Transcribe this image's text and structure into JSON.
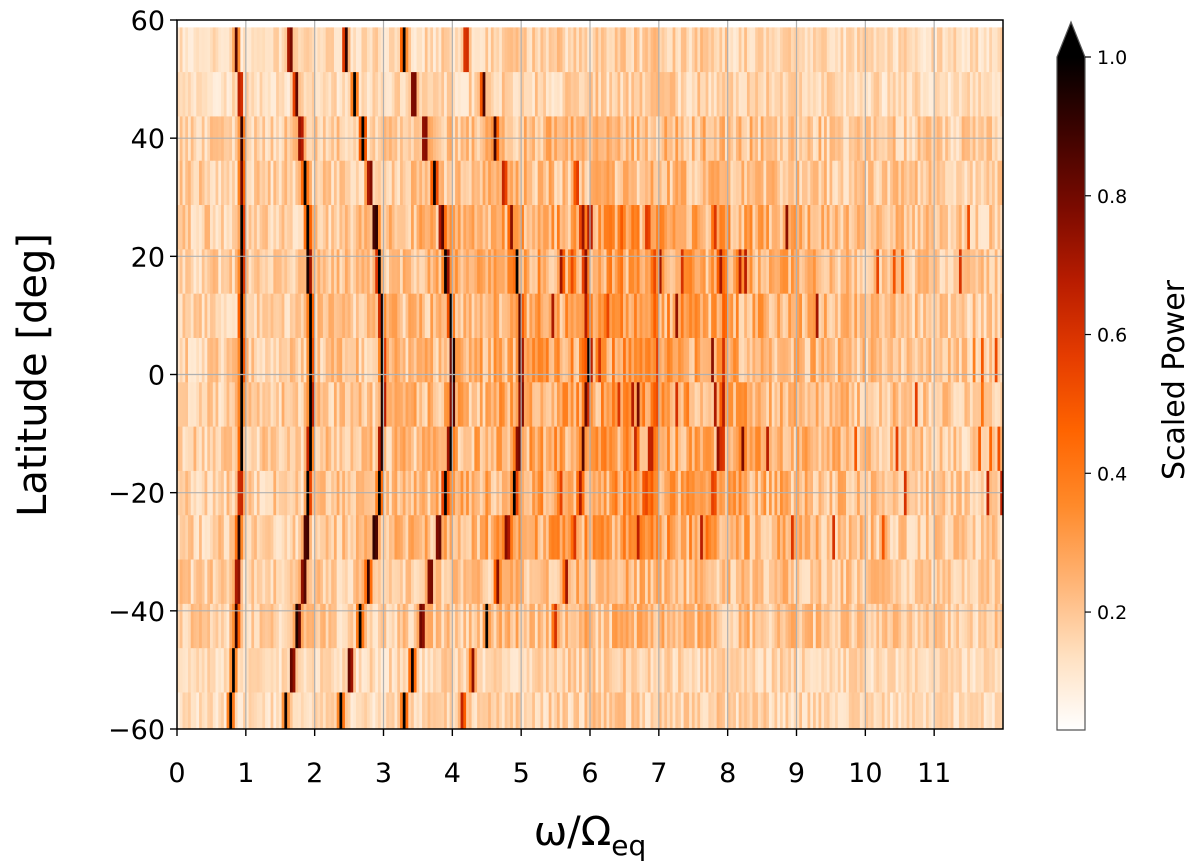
{
  "chart_data": {
    "type": "heatmap",
    "title": "",
    "xlabel": "ω/Ω",
    "xlabel_subscript": "eq",
    "ylabel": "Latitude [deg]",
    "xlim": [
      0,
      12
    ],
    "ylim": [
      -60,
      60
    ],
    "x_ticks": [
      0,
      1,
      2,
      3,
      4,
      5,
      6,
      7,
      8,
      9,
      10,
      11
    ],
    "x_tick_labels": [
      "0",
      "1",
      "2",
      "3",
      "4",
      "5",
      "6",
      "7",
      "8",
      "9",
      "10",
      "11"
    ],
    "y_ticks": [
      -60,
      -40,
      -20,
      0,
      20,
      40,
      60
    ],
    "y_tick_labels": [
      "−60",
      "−40",
      "−20",
      "0",
      "20",
      "40",
      "60"
    ],
    "grid": true,
    "latitude_bands": [
      -57.5,
      -50,
      -42.5,
      -35,
      -27.5,
      -20,
      -12.5,
      -5,
      2.5,
      10,
      17.5,
      25,
      32.5,
      40,
      47.5,
      55
    ],
    "ridges": [
      {
        "omega": [
          0.78,
          0.82,
          0.86,
          0.88,
          0.9,
          0.92,
          0.93,
          0.94,
          0.94,
          0.94,
          0.95,
          0.95,
          0.94,
          0.94,
          0.92,
          0.86
        ],
        "peak": 0.9
      },
      {
        "omega": [
          1.58,
          1.68,
          1.76,
          1.84,
          1.88,
          1.91,
          1.93,
          1.95,
          1.95,
          1.94,
          1.92,
          1.9,
          1.86,
          1.8,
          1.73,
          1.64
        ],
        "peak": 1.0
      },
      {
        "omega": [
          2.38,
          2.52,
          2.66,
          2.78,
          2.88,
          2.94,
          2.97,
          2.99,
          2.99,
          2.97,
          2.93,
          2.88,
          2.8,
          2.7,
          2.58,
          2.45
        ],
        "peak": 1.0
      },
      {
        "omega": [
          3.3,
          3.42,
          3.56,
          3.68,
          3.8,
          3.9,
          3.97,
          4.0,
          4.0,
          3.98,
          3.92,
          3.85,
          3.74,
          3.6,
          3.44,
          3.3
        ],
        "peak": 0.95
      },
      {
        "omega": [
          4.15,
          4.3,
          4.5,
          4.66,
          4.8,
          4.9,
          4.96,
          5.0,
          5.0,
          4.98,
          4.93,
          4.86,
          4.76,
          4.62,
          4.45,
          4.2
        ],
        "peak": 0.75
      },
      {
        "omega": [
          null,
          null,
          5.5,
          5.65,
          5.78,
          5.85,
          5.9,
          5.95,
          5.96,
          5.95,
          5.93,
          5.88,
          5.8,
          null,
          null,
          null
        ],
        "peak": 0.5
      },
      {
        "omega": [
          null,
          null,
          null,
          null,
          6.7,
          6.8,
          6.88,
          6.95,
          6.97,
          6.96,
          6.92,
          6.85,
          null,
          null,
          null,
          null
        ],
        "peak": 0.4
      },
      {
        "omega": [
          null,
          null,
          null,
          null,
          7.7,
          7.8,
          7.88,
          7.93,
          7.95,
          7.94,
          7.9,
          7.82,
          null,
          null,
          null,
          null
        ],
        "peak": 0.38
      }
    ],
    "colorbar": {
      "label": "Scaled Power",
      "range": [
        0.03,
        1.0
      ],
      "ticks": [
        0.2,
        0.4,
        0.6,
        0.8,
        1.0
      ],
      "tick_labels": [
        "0.2",
        "0.4",
        "0.6",
        "0.8",
        "1.0"
      ],
      "extend": "max",
      "colormap": "gist_heat_r",
      "colors": [
        "#ffffff",
        "#ffe0c0",
        "#ffb374",
        "#ff8a2a",
        "#ff6400",
        "#e53c00",
        "#b81c00",
        "#7a0a00",
        "#3d0300",
        "#000000"
      ]
    }
  }
}
